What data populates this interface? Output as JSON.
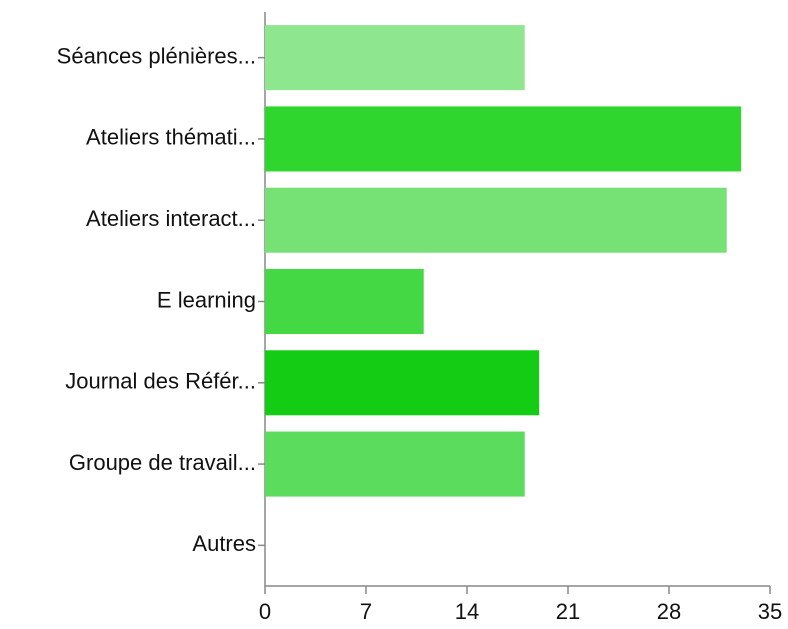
{
  "chart_data": {
    "type": "bar",
    "orientation": "horizontal",
    "categories": [
      "Séances plénières...",
      "Ateliers thémati...",
      "Ateliers interact...",
      "E learning",
      "Journal des Référ...",
      "Groupe de travail...",
      "Autres"
    ],
    "values": [
      18,
      33,
      32,
      11,
      19,
      18,
      0
    ],
    "colors": [
      "#8ee68e",
      "#2ed62e",
      "#76e276",
      "#44d844",
      "#14cc14",
      "#5cdc5c",
      "#5cdc5c"
    ],
    "xlim": [
      0,
      35
    ],
    "xticks": [
      0,
      7,
      14,
      21,
      28,
      35
    ],
    "grid": false
  }
}
